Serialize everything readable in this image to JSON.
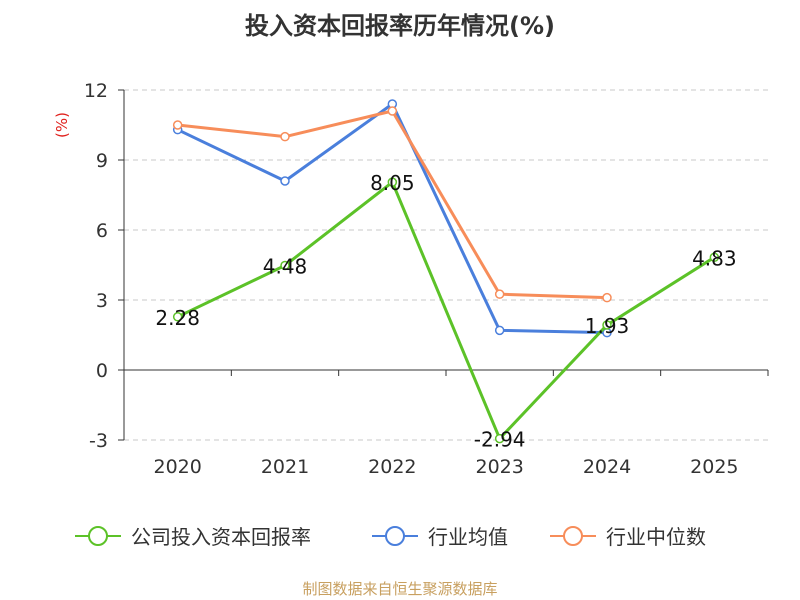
{
  "colors": {
    "company": "#5cc228",
    "industry_avg": "#4a7fdc",
    "industry_median": "#f78d5a",
    "grid": "#c8c8c8",
    "axis": "#333333",
    "unit": "#e0201c",
    "footer": "#c8a060"
  },
  "chart_data": {
    "type": "line",
    "title": "投入资本回报率历年情况(%)",
    "ylabel": "(%)",
    "categories": [
      "2020",
      "2021",
      "2022",
      "2023",
      "2024",
      "2025"
    ],
    "ylim": [
      -3,
      12
    ],
    "yticks": [
      -3,
      0,
      3,
      6,
      9,
      12
    ],
    "grid": true,
    "legend_position": "bottom",
    "series": [
      {
        "name": "公司投入资本回报率",
        "values": [
          2.28,
          4.48,
          8.05,
          -2.94,
          1.93,
          4.83
        ],
        "labels": [
          "2.28",
          "4.48",
          "8.05",
          "-2.94",
          "1.93",
          "4.83"
        ],
        "color": "#5cc228"
      },
      {
        "name": "行业均值",
        "values": [
          10.3,
          8.1,
          11.4,
          1.7,
          1.6,
          null
        ],
        "color": "#4a7fdc"
      },
      {
        "name": "行业中位数",
        "values": [
          10.5,
          10.0,
          11.1,
          3.25,
          3.1,
          null
        ],
        "color": "#f78d5a"
      }
    ]
  },
  "footer": "制图数据来自恒生聚源数据库"
}
